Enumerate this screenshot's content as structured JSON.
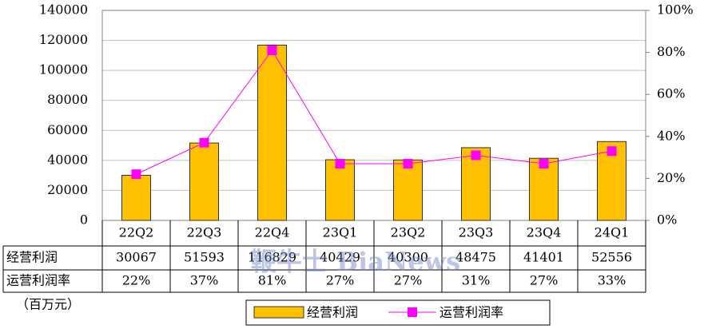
{
  "chart_data": {
    "type": "bar",
    "categories": [
      "22Q2",
      "22Q3",
      "22Q4",
      "23Q1",
      "23Q2",
      "23Q3",
      "23Q4",
      "24Q1"
    ],
    "series": [
      {
        "name": "经营利润",
        "color": "#FFC000",
        "values": [
          30067,
          51593,
          116829,
          40429,
          40300,
          48475,
          41401,
          52556
        ]
      },
      {
        "name": "运营利润率",
        "color": "#FF00FF",
        "axis": "y2",
        "type": "line",
        "values": [
          22,
          37,
          81,
          27,
          27,
          31,
          27,
          33
        ],
        "value_labels": [
          "22%",
          "37%",
          "81%",
          "27%",
          "27%",
          "31%",
          "27%",
          "33%"
        ]
      }
    ],
    "ylim": [
      0,
      140000
    ],
    "yticks": [
      0,
      20000,
      40000,
      60000,
      80000,
      100000,
      120000,
      140000
    ],
    "y2lim": [
      0,
      100
    ],
    "y2ticks": [
      {
        "value": 0,
        "label": "0%"
      },
      {
        "value": 20,
        "label": "20%"
      },
      {
        "value": 40,
        "label": "40%"
      },
      {
        "value": 60,
        "label": "60%"
      },
      {
        "value": 80,
        "label": "80%"
      },
      {
        "value": 100,
        "label": "100%"
      }
    ],
    "unit_note": "（百万元）",
    "watermark": "鞭牛士 BiaNews",
    "grid": true,
    "legend": "bottom"
  }
}
